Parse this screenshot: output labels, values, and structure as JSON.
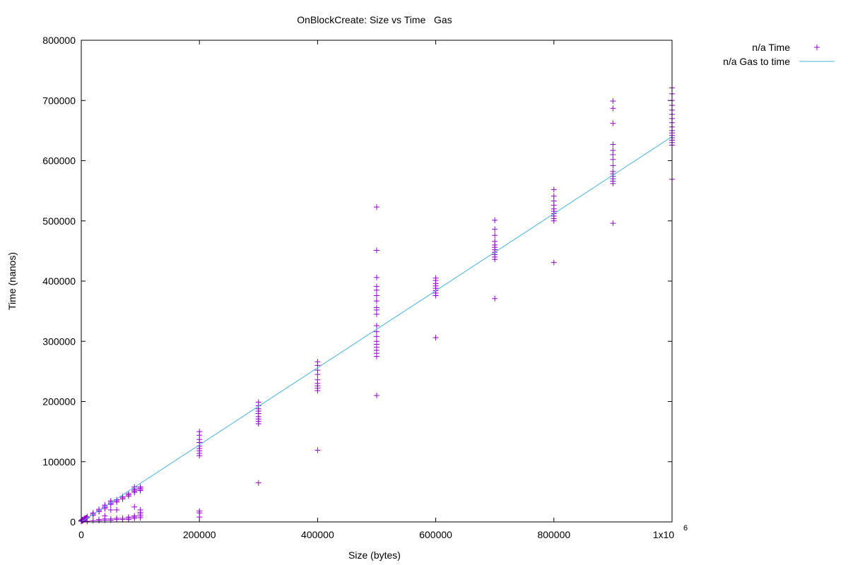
{
  "chart_data": {
    "type": "scatter",
    "title": "OnBlockCreate: Size vs Time   Gas",
    "xlabel": "Size (bytes)",
    "ylabel": "Time (nanos)",
    "xlim": [
      0,
      1000000
    ],
    "ylim": [
      0,
      800000
    ],
    "x_ticks": [
      0,
      200000,
      400000,
      600000,
      800000,
      1000000
    ],
    "x_tick_labels": [
      "0",
      "200000",
      "400000",
      "600000",
      "800000",
      "1x10"
    ],
    "x_tick_exponent": "6",
    "y_ticks": [
      0,
      100000,
      200000,
      300000,
      400000,
      500000,
      600000,
      700000,
      800000
    ],
    "y_tick_labels": [
      "0",
      "100000",
      "200000",
      "300000",
      "400000",
      "500000",
      "600000",
      "700000",
      "800000"
    ],
    "grid": false,
    "legend_position": "outside-top-right",
    "series": [
      {
        "name": "n/a Time",
        "kind": "points",
        "color": "#9400d3",
        "points": [
          [
            0,
            1000
          ],
          [
            0,
            2500
          ],
          [
            1000,
            1500
          ],
          [
            1000,
            3000
          ],
          [
            2000,
            2000
          ],
          [
            2000,
            4000
          ],
          [
            3000,
            3000
          ],
          [
            4000,
            3500
          ],
          [
            5000,
            4000
          ],
          [
            5000,
            6000
          ],
          [
            6000,
            5000
          ],
          [
            7000,
            6000
          ],
          [
            8000,
            6500
          ],
          [
            9000,
            7000
          ],
          [
            10000,
            7000
          ],
          [
            10000,
            9000
          ],
          [
            10000,
            1000
          ],
          [
            20000,
            11000
          ],
          [
            20000,
            13000
          ],
          [
            20000,
            15000
          ],
          [
            20000,
            2000
          ],
          [
            30000,
            17000
          ],
          [
            30000,
            19000
          ],
          [
            30000,
            21000
          ],
          [
            30000,
            2000
          ],
          [
            30000,
            4000
          ],
          [
            40000,
            22000
          ],
          [
            40000,
            24000
          ],
          [
            40000,
            26000
          ],
          [
            40000,
            28000
          ],
          [
            40000,
            3000
          ],
          [
            40000,
            5000
          ],
          [
            40000,
            10000
          ],
          [
            50000,
            29000
          ],
          [
            50000,
            31000
          ],
          [
            50000,
            33000
          ],
          [
            50000,
            35000
          ],
          [
            50000,
            3000
          ],
          [
            50000,
            5000
          ],
          [
            50000,
            20000
          ],
          [
            60000,
            33000
          ],
          [
            60000,
            35000
          ],
          [
            60000,
            37000
          ],
          [
            60000,
            4000
          ],
          [
            60000,
            6000
          ],
          [
            60000,
            20000
          ],
          [
            70000,
            38000
          ],
          [
            70000,
            40000
          ],
          [
            70000,
            42000
          ],
          [
            70000,
            4000
          ],
          [
            70000,
            6000
          ],
          [
            80000,
            43000
          ],
          [
            80000,
            45000
          ],
          [
            80000,
            47000
          ],
          [
            80000,
            4000
          ],
          [
            80000,
            6000
          ],
          [
            80000,
            8000
          ],
          [
            90000,
            49000
          ],
          [
            90000,
            51000
          ],
          [
            90000,
            53000
          ],
          [
            90000,
            55000
          ],
          [
            90000,
            58000
          ],
          [
            90000,
            6000
          ],
          [
            90000,
            8000
          ],
          [
            90000,
            10000
          ],
          [
            90000,
            25000
          ],
          [
            100000,
            52000
          ],
          [
            100000,
            54000
          ],
          [
            100000,
            56000
          ],
          [
            100000,
            58000
          ],
          [
            100000,
            7000
          ],
          [
            100000,
            10000
          ],
          [
            100000,
            13000
          ],
          [
            100000,
            16000
          ],
          [
            100000,
            20000
          ],
          [
            200000,
            110000
          ],
          [
            200000,
            114000
          ],
          [
            200000,
            118000
          ],
          [
            200000,
            122000
          ],
          [
            200000,
            126000
          ],
          [
            200000,
            132000
          ],
          [
            200000,
            137000
          ],
          [
            200000,
            144000
          ],
          [
            200000,
            150000
          ],
          [
            200000,
            15000
          ],
          [
            200000,
            18000
          ],
          [
            200000,
            8000
          ],
          [
            300000,
            163000
          ],
          [
            300000,
            167000
          ],
          [
            300000,
            171000
          ],
          [
            300000,
            175000
          ],
          [
            300000,
            180000
          ],
          [
            300000,
            184000
          ],
          [
            300000,
            188000
          ],
          [
            300000,
            193000
          ],
          [
            300000,
            199000
          ],
          [
            300000,
            65000
          ],
          [
            400000,
            218000
          ],
          [
            400000,
            222000
          ],
          [
            400000,
            226000
          ],
          [
            400000,
            230000
          ],
          [
            400000,
            236000
          ],
          [
            400000,
            245000
          ],
          [
            400000,
            252000
          ],
          [
            400000,
            260000
          ],
          [
            400000,
            266000
          ],
          [
            400000,
            119000
          ],
          [
            500000,
            275000
          ],
          [
            500000,
            280000
          ],
          [
            500000,
            285000
          ],
          [
            500000,
            290000
          ],
          [
            500000,
            295000
          ],
          [
            500000,
            300000
          ],
          [
            500000,
            308000
          ],
          [
            500000,
            316000
          ],
          [
            500000,
            326000
          ],
          [
            500000,
            345000
          ],
          [
            500000,
            352000
          ],
          [
            500000,
            356000
          ],
          [
            500000,
            367000
          ],
          [
            500000,
            376000
          ],
          [
            500000,
            385000
          ],
          [
            500000,
            391000
          ],
          [
            500000,
            406000
          ],
          [
            500000,
            451000
          ],
          [
            500000,
            523000
          ],
          [
            500000,
            210000
          ],
          [
            600000,
            376000
          ],
          [
            600000,
            380000
          ],
          [
            600000,
            384000
          ],
          [
            600000,
            388000
          ],
          [
            600000,
            392000
          ],
          [
            600000,
            396000
          ],
          [
            600000,
            401000
          ],
          [
            600000,
            405000
          ],
          [
            600000,
            306000
          ],
          [
            700000,
            436000
          ],
          [
            700000,
            440000
          ],
          [
            700000,
            444000
          ],
          [
            700000,
            448000
          ],
          [
            700000,
            452000
          ],
          [
            700000,
            456000
          ],
          [
            700000,
            460000
          ],
          [
            700000,
            466000
          ],
          [
            700000,
            476000
          ],
          [
            700000,
            486000
          ],
          [
            700000,
            501000
          ],
          [
            700000,
            371000
          ],
          [
            800000,
            500000
          ],
          [
            800000,
            504000
          ],
          [
            800000,
            508000
          ],
          [
            800000,
            512000
          ],
          [
            800000,
            516000
          ],
          [
            800000,
            520000
          ],
          [
            800000,
            526000
          ],
          [
            800000,
            533000
          ],
          [
            800000,
            541000
          ],
          [
            800000,
            552000
          ],
          [
            800000,
            431000
          ],
          [
            900000,
            562000
          ],
          [
            900000,
            566000
          ],
          [
            900000,
            570000
          ],
          [
            900000,
            574000
          ],
          [
            900000,
            578000
          ],
          [
            900000,
            582000
          ],
          [
            900000,
            592000
          ],
          [
            900000,
            602000
          ],
          [
            900000,
            610000
          ],
          [
            900000,
            617000
          ],
          [
            900000,
            627000
          ],
          [
            900000,
            662000
          ],
          [
            900000,
            687000
          ],
          [
            900000,
            699000
          ],
          [
            900000,
            496000
          ],
          [
            1000000,
            626000
          ],
          [
            1000000,
            630000
          ],
          [
            1000000,
            634000
          ],
          [
            1000000,
            638000
          ],
          [
            1000000,
            642000
          ],
          [
            1000000,
            646000
          ],
          [
            1000000,
            650000
          ],
          [
            1000000,
            656000
          ],
          [
            1000000,
            663000
          ],
          [
            1000000,
            670000
          ],
          [
            1000000,
            677000
          ],
          [
            1000000,
            684000
          ],
          [
            1000000,
            692000
          ],
          [
            1000000,
            700000
          ],
          [
            1000000,
            711000
          ],
          [
            1000000,
            721000
          ],
          [
            1000000,
            569000
          ]
        ]
      },
      {
        "name": "n/a Gas to time",
        "kind": "line",
        "color": "#4ab5e0",
        "points": [
          [
            0,
            0
          ],
          [
            1000000,
            640000
          ]
        ]
      }
    ]
  }
}
